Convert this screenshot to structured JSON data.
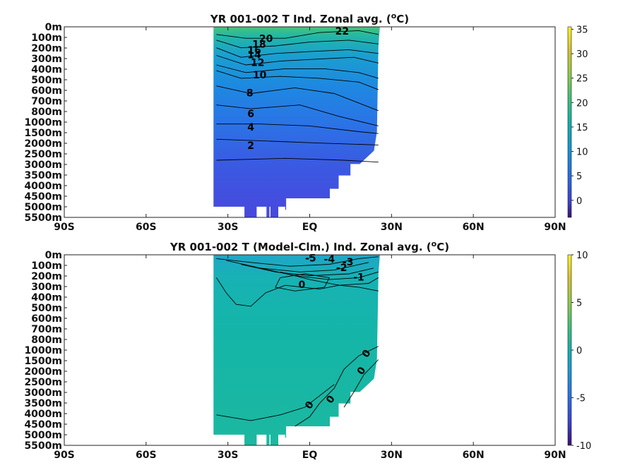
{
  "chart_data": [
    {
      "type": "heatmap",
      "title": "YR 001-002 T Ind. Zonal avg. (",
      "title_sup": "o",
      "title_unit": "C)",
      "x_tick_labels": [
        "90S",
        "60S",
        "30S",
        "EQ",
        "30N",
        "60N",
        "90N"
      ],
      "y_tick_labels": [
        "0m",
        "100m",
        "200m",
        "300m",
        "400m",
        "500m",
        "600m",
        "700m",
        "800m",
        "1000m",
        "1500m",
        "2000m",
        "2500m",
        "3000m",
        "3500m",
        "4000m",
        "4500m",
        "5000m",
        "5500m"
      ],
      "colorbar": {
        "ticks": [
          "35",
          "30",
          "25",
          "20",
          "15",
          "10",
          "5",
          "0"
        ],
        "range": [
          -3.5,
          35.5
        ]
      },
      "contour_labels": [
        "22",
        "20",
        "18",
        "16",
        "14",
        "12",
        "10",
        "8",
        "6",
        "4",
        "2"
      ]
    },
    {
      "type": "heatmap",
      "title": "YR 001-002 T (Model-Clm.) Ind. Zonal avg. (",
      "title_sup": "o",
      "title_unit": "C)",
      "x_tick_labels": [
        "90S",
        "60S",
        "30S",
        "EQ",
        "30N",
        "60N",
        "90N"
      ],
      "y_tick_labels": [
        "0m",
        "100m",
        "200m",
        "300m",
        "400m",
        "500m",
        "600m",
        "700m",
        "800m",
        "1000m",
        "1500m",
        "2000m",
        "2500m",
        "3000m",
        "3500m",
        "4000m",
        "4500m",
        "5000m",
        "5500m"
      ],
      "colorbar": {
        "ticks": [
          "10",
          "5",
          "0",
          "-5",
          "-10"
        ],
        "range": [
          -10,
          10
        ]
      },
      "contour_labels": [
        "-5",
        "-4",
        "-3",
        "-2",
        "-1",
        "0",
        "0",
        "0",
        "0",
        "0"
      ]
    }
  ]
}
